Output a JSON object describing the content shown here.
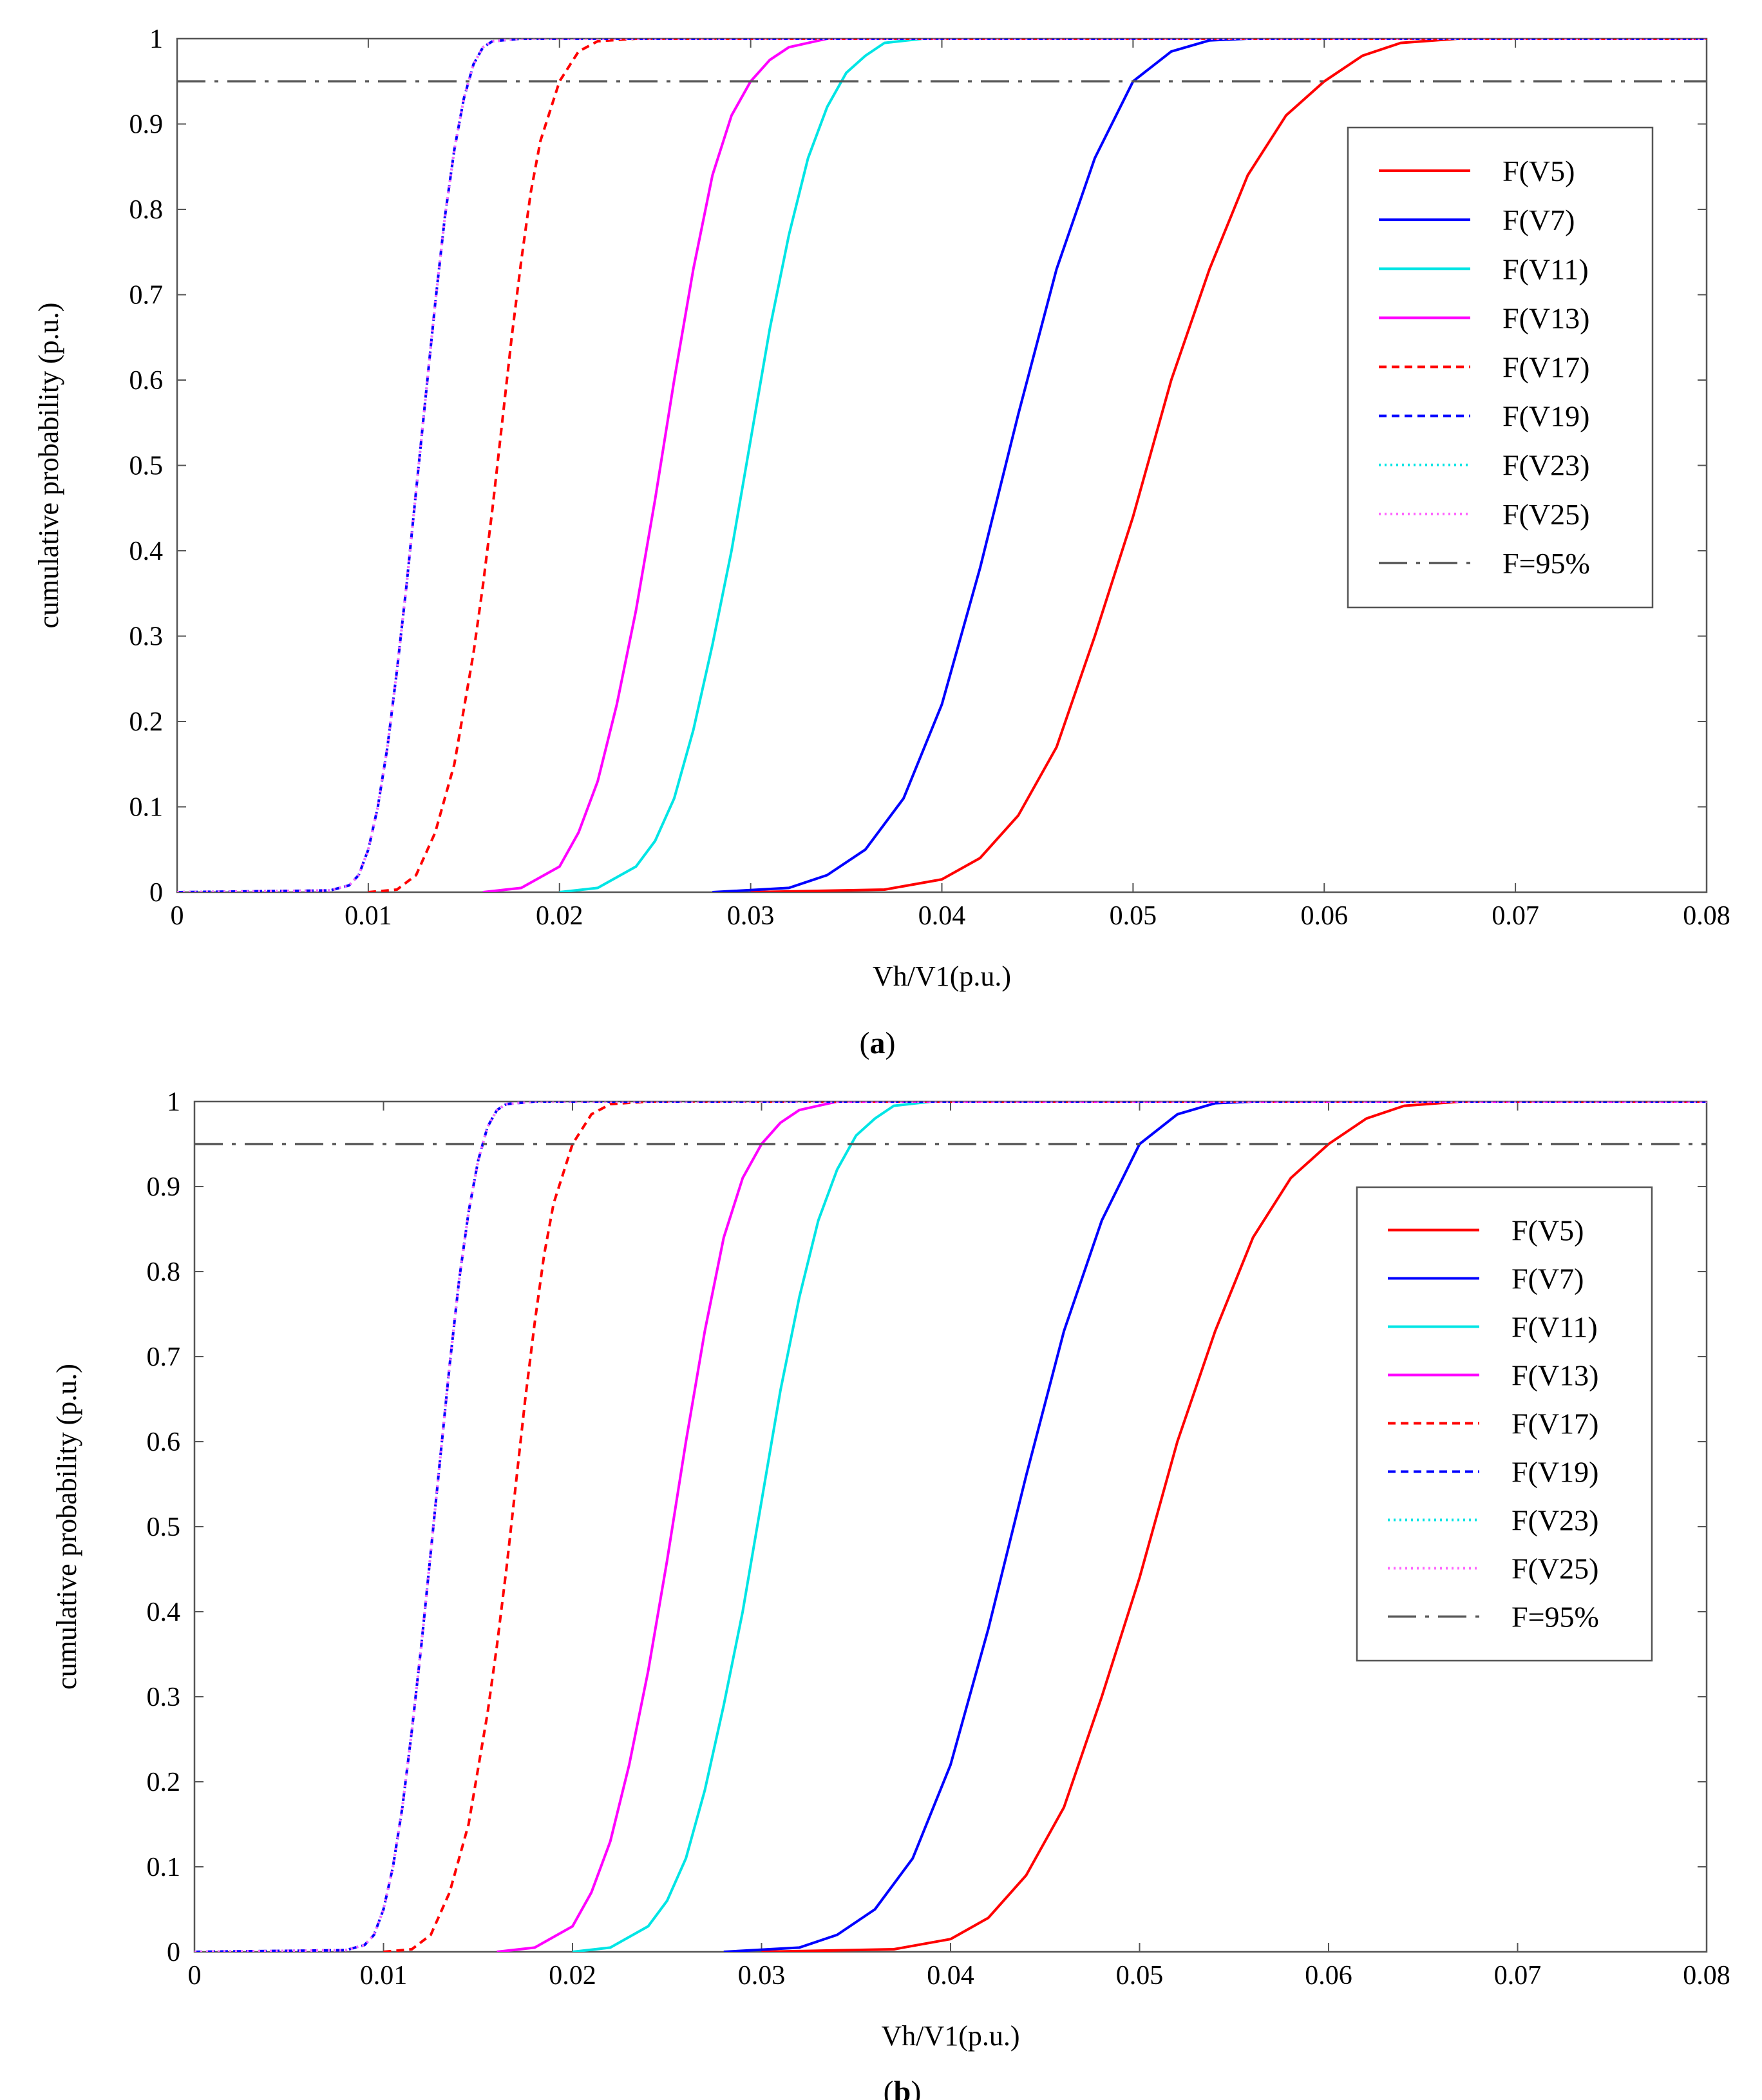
{
  "panels": [
    {
      "caption_open": "(",
      "caption_letter": "a",
      "caption_close": ")",
      "chart_data": {
        "type": "line",
        "title": "",
        "xlabel": "Vh/V1(p.u.)",
        "ylabel": "cumulative probability (p.u.)",
        "xlim": [
          0,
          0.08
        ],
        "ylim": [
          0,
          1
        ],
        "x_ticks": [
          0,
          0.01,
          0.02,
          0.03,
          0.04,
          0.05,
          0.06,
          0.07,
          0.08
        ],
        "x_tick_labels": [
          "0",
          "0.01",
          "0.02",
          "0.03",
          "0.04",
          "0.05",
          "0.06",
          "0.07",
          "0.08"
        ],
        "y_ticks": [
          0,
          0.1,
          0.2,
          0.3,
          0.4,
          0.5,
          0.6,
          0.7,
          0.8,
          0.9,
          1
        ],
        "y_tick_labels": [
          "0",
          "0.1",
          "0.2",
          "0.3",
          "0.4",
          "0.5",
          "0.6",
          "0.7",
          "0.8",
          "0.9",
          "1"
        ],
        "grid": false,
        "legend_position": "top-right",
        "series": [
          {
            "name": "F(V5)",
            "color": "#ff0000",
            "style": "solid",
            "x": [
              0.03,
              0.037,
              0.04,
              0.042,
              0.044,
              0.046,
              0.048,
              0.05,
              0.052,
              0.054,
              0.056,
              0.058,
              0.06,
              0.062,
              0.064,
              0.067,
              0.08
            ],
            "y": [
              0,
              0.003,
              0.015,
              0.04,
              0.09,
              0.17,
              0.3,
              0.44,
              0.6,
              0.73,
              0.84,
              0.91,
              0.95,
              0.98,
              0.995,
              1,
              1
            ]
          },
          {
            "name": "F(V7)",
            "color": "#0000ff",
            "style": "solid",
            "x": [
              0.028,
              0.032,
              0.034,
              0.036,
              0.038,
              0.04,
              0.042,
              0.044,
              0.046,
              0.048,
              0.05,
              0.052,
              0.054,
              0.056,
              0.08
            ],
            "y": [
              0,
              0.005,
              0.02,
              0.05,
              0.11,
              0.22,
              0.38,
              0.56,
              0.73,
              0.86,
              0.95,
              0.985,
              0.998,
              1,
              1
            ]
          },
          {
            "name": "F(V11)",
            "color": "#00e5e5",
            "style": "solid",
            "x": [
              0.02,
              0.022,
              0.024,
              0.025,
              0.026,
              0.027,
              0.028,
              0.029,
              0.03,
              0.031,
              0.032,
              0.033,
              0.034,
              0.035,
              0.036,
              0.037,
              0.039,
              0.08
            ],
            "y": [
              0,
              0.005,
              0.03,
              0.06,
              0.11,
              0.19,
              0.29,
              0.4,
              0.53,
              0.66,
              0.77,
              0.86,
              0.92,
              0.96,
              0.98,
              0.995,
              1,
              1
            ]
          },
          {
            "name": "F(V13)",
            "color": "#ff00ff",
            "style": "solid",
            "x": [
              0.016,
              0.018,
              0.02,
              0.021,
              0.022,
              0.023,
              0.024,
              0.025,
              0.026,
              0.027,
              0.028,
              0.029,
              0.03,
              0.031,
              0.032,
              0.034,
              0.08
            ],
            "y": [
              0,
              0.005,
              0.03,
              0.07,
              0.13,
              0.22,
              0.33,
              0.46,
              0.6,
              0.73,
              0.84,
              0.91,
              0.95,
              0.975,
              0.99,
              1,
              1
            ]
          },
          {
            "name": "F(V17)",
            "color": "#ff0000",
            "style": "dash",
            "x": [
              0.01,
              0.0115,
              0.0125,
              0.0135,
              0.0145,
              0.0155,
              0.016,
              0.0165,
              0.017,
              0.0175,
              0.018,
              0.0185,
              0.019,
              0.02,
              0.021,
              0.022,
              0.024,
              0.08
            ],
            "y": [
              0,
              0.003,
              0.02,
              0.07,
              0.15,
              0.28,
              0.36,
              0.45,
              0.55,
              0.65,
              0.74,
              0.82,
              0.88,
              0.95,
              0.985,
              0.997,
              1,
              1
            ]
          },
          {
            "name": "F(V19)",
            "color": "#0000ff",
            "style": "dash",
            "x": [
              0,
              0.008,
              0.009,
              0.0095,
              0.01,
              0.0105,
              0.011,
              0.0115,
              0.012,
              0.0125,
              0.013,
              0.0135,
              0.014,
              0.0145,
              0.015,
              0.0155,
              0.016,
              0.0165,
              0.018,
              0.08
            ],
            "y": [
              0,
              0.002,
              0.008,
              0.02,
              0.05,
              0.1,
              0.17,
              0.26,
              0.36,
              0.47,
              0.58,
              0.69,
              0.79,
              0.87,
              0.93,
              0.97,
              0.99,
              0.997,
              1,
              1
            ]
          },
          {
            "name": "F(V23)",
            "color": "#00e5e5",
            "style": "dot",
            "x": [
              0,
              0.008,
              0.009,
              0.0095,
              0.01,
              0.0105,
              0.011,
              0.0115,
              0.012,
              0.0125,
              0.013,
              0.0135,
              0.014,
              0.0145,
              0.015,
              0.0155,
              0.016,
              0.0165,
              0.018,
              0.08
            ],
            "y": [
              0,
              0.002,
              0.008,
              0.02,
              0.05,
              0.1,
              0.17,
              0.26,
              0.36,
              0.47,
              0.58,
              0.69,
              0.79,
              0.87,
              0.93,
              0.97,
              0.99,
              0.997,
              1,
              1
            ]
          },
          {
            "name": "F(V25)",
            "color": "#ff66ff",
            "style": "dot",
            "x": [
              0,
              0.008,
              0.009,
              0.0095,
              0.01,
              0.0105,
              0.011,
              0.0115,
              0.012,
              0.0125,
              0.013,
              0.0135,
              0.014,
              0.0145,
              0.015,
              0.0155,
              0.016,
              0.0165,
              0.018,
              0.08
            ],
            "y": [
              0,
              0.002,
              0.008,
              0.02,
              0.05,
              0.1,
              0.17,
              0.26,
              0.36,
              0.47,
              0.58,
              0.69,
              0.79,
              0.87,
              0.93,
              0.97,
              0.99,
              0.997,
              1,
              1
            ]
          },
          {
            "name": "F=95%",
            "color": "#555555",
            "style": "longdash",
            "x": [
              0,
              0.08
            ],
            "y": [
              0.95,
              0.95
            ]
          }
        ]
      }
    },
    {
      "caption_open": "(",
      "caption_letter": "b",
      "caption_close": ")",
      "chart_data": {
        "type": "line",
        "title": "",
        "xlabel": "Vh/V1(p.u.)",
        "ylabel": "cumulative probability (p.u.)",
        "xlim": [
          0,
          0.08
        ],
        "ylim": [
          0,
          1
        ],
        "x_ticks": [
          0,
          0.01,
          0.02,
          0.03,
          0.04,
          0.05,
          0.06,
          0.07,
          0.08
        ],
        "x_tick_labels": [
          "0",
          "0.01",
          "0.02",
          "0.03",
          "0.04",
          "0.05",
          "0.06",
          "0.07",
          "0.08"
        ],
        "y_ticks": [
          0,
          0.1,
          0.2,
          0.3,
          0.4,
          0.5,
          0.6,
          0.7,
          0.8,
          0.9,
          1
        ],
        "y_tick_labels": [
          "0",
          "0.1",
          "0.2",
          "0.3",
          "0.4",
          "0.5",
          "0.6",
          "0.7",
          "0.8",
          "0.9",
          "1"
        ],
        "grid": false,
        "legend_position": "top-right",
        "series": [
          {
            "name": "F(V5)",
            "color": "#ff0000",
            "style": "solid",
            "x": [
              0.03,
              0.037,
              0.04,
              0.042,
              0.044,
              0.046,
              0.048,
              0.05,
              0.052,
              0.054,
              0.056,
              0.058,
              0.06,
              0.062,
              0.064,
              0.067,
              0.08
            ],
            "y": [
              0,
              0.003,
              0.015,
              0.04,
              0.09,
              0.17,
              0.3,
              0.44,
              0.6,
              0.73,
              0.84,
              0.91,
              0.95,
              0.98,
              0.995,
              1,
              1
            ]
          },
          {
            "name": "F(V7)",
            "color": "#0000ff",
            "style": "solid",
            "x": [
              0.028,
              0.032,
              0.034,
              0.036,
              0.038,
              0.04,
              0.042,
              0.044,
              0.046,
              0.048,
              0.05,
              0.052,
              0.054,
              0.056,
              0.08
            ],
            "y": [
              0,
              0.005,
              0.02,
              0.05,
              0.11,
              0.22,
              0.38,
              0.56,
              0.73,
              0.86,
              0.95,
              0.985,
              0.998,
              1,
              1
            ]
          },
          {
            "name": "F(V11)",
            "color": "#00e5e5",
            "style": "solid",
            "x": [
              0.02,
              0.022,
              0.024,
              0.025,
              0.026,
              0.027,
              0.028,
              0.029,
              0.03,
              0.031,
              0.032,
              0.033,
              0.034,
              0.035,
              0.036,
              0.037,
              0.039,
              0.08
            ],
            "y": [
              0,
              0.005,
              0.03,
              0.06,
              0.11,
              0.19,
              0.29,
              0.4,
              0.53,
              0.66,
              0.77,
              0.86,
              0.92,
              0.96,
              0.98,
              0.995,
              1,
              1
            ]
          },
          {
            "name": "F(V13)",
            "color": "#ff00ff",
            "style": "solid",
            "x": [
              0.016,
              0.018,
              0.02,
              0.021,
              0.022,
              0.023,
              0.024,
              0.025,
              0.026,
              0.027,
              0.028,
              0.029,
              0.03,
              0.031,
              0.032,
              0.034,
              0.08
            ],
            "y": [
              0,
              0.005,
              0.03,
              0.07,
              0.13,
              0.22,
              0.33,
              0.46,
              0.6,
              0.73,
              0.84,
              0.91,
              0.95,
              0.975,
              0.99,
              1,
              1
            ]
          },
          {
            "name": "F(V17)",
            "color": "#ff0000",
            "style": "dash",
            "x": [
              0.01,
              0.0115,
              0.0125,
              0.0135,
              0.0145,
              0.0155,
              0.016,
              0.0165,
              0.017,
              0.0175,
              0.018,
              0.0185,
              0.019,
              0.02,
              0.021,
              0.022,
              0.024,
              0.08
            ],
            "y": [
              0,
              0.003,
              0.02,
              0.07,
              0.15,
              0.28,
              0.36,
              0.45,
              0.55,
              0.65,
              0.74,
              0.82,
              0.88,
              0.95,
              0.985,
              0.997,
              1,
              1
            ]
          },
          {
            "name": "F(V19)",
            "color": "#0000ff",
            "style": "dash",
            "x": [
              0,
              0.008,
              0.009,
              0.0095,
              0.01,
              0.0105,
              0.011,
              0.0115,
              0.012,
              0.0125,
              0.013,
              0.0135,
              0.014,
              0.0145,
              0.015,
              0.0155,
              0.016,
              0.0165,
              0.018,
              0.08
            ],
            "y": [
              0,
              0.002,
              0.008,
              0.02,
              0.05,
              0.1,
              0.17,
              0.26,
              0.36,
              0.47,
              0.58,
              0.69,
              0.79,
              0.87,
              0.93,
              0.97,
              0.99,
              0.997,
              1,
              1
            ]
          },
          {
            "name": "F(V23)",
            "color": "#00e5e5",
            "style": "dot",
            "x": [
              0,
              0.008,
              0.009,
              0.0095,
              0.01,
              0.0105,
              0.011,
              0.0115,
              0.012,
              0.0125,
              0.013,
              0.0135,
              0.014,
              0.0145,
              0.015,
              0.0155,
              0.016,
              0.0165,
              0.018,
              0.08
            ],
            "y": [
              0,
              0.002,
              0.008,
              0.02,
              0.05,
              0.1,
              0.17,
              0.26,
              0.36,
              0.47,
              0.58,
              0.69,
              0.79,
              0.87,
              0.93,
              0.97,
              0.99,
              0.997,
              1,
              1
            ]
          },
          {
            "name": "F(V25)",
            "color": "#ff66ff",
            "style": "dot",
            "x": [
              0,
              0.008,
              0.009,
              0.0095,
              0.01,
              0.0105,
              0.011,
              0.0115,
              0.012,
              0.0125,
              0.013,
              0.0135,
              0.014,
              0.0145,
              0.015,
              0.0155,
              0.016,
              0.0165,
              0.018,
              0.08
            ],
            "y": [
              0,
              0.002,
              0.008,
              0.02,
              0.05,
              0.1,
              0.17,
              0.26,
              0.36,
              0.47,
              0.58,
              0.69,
              0.79,
              0.87,
              0.93,
              0.97,
              0.99,
              0.997,
              1,
              1
            ]
          },
          {
            "name": "F=95%",
            "color": "#555555",
            "style": "longdash",
            "x": [
              0,
              0.08
            ],
            "y": [
              0.95,
              0.95
            ]
          }
        ]
      }
    }
  ]
}
